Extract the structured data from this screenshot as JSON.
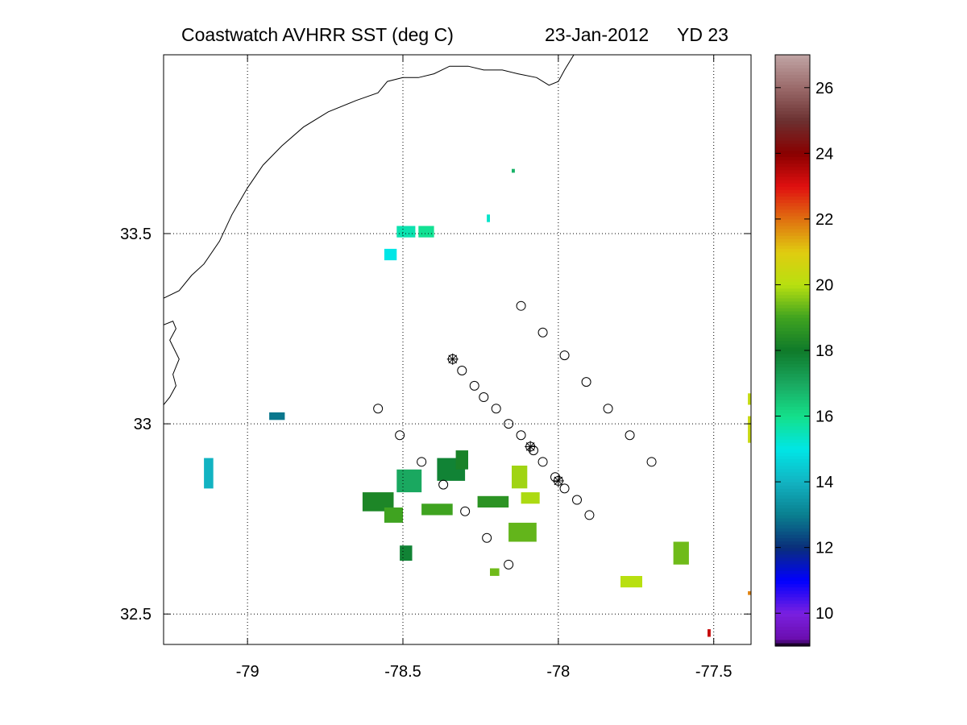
{
  "title": {
    "product": "Coastwatch  AVHRR   SST  (deg C)",
    "date": "23-Jan-2012",
    "yearday": "YD 23"
  },
  "map": {
    "lon_range": [
      -79.27,
      -77.38
    ],
    "lat_range": [
      32.42,
      33.97
    ],
    "lon_ticks": [
      {
        "value": -79,
        "label": "-79"
      },
      {
        "value": -78.5,
        "label": "-78.5"
      },
      {
        "value": -78,
        "label": "-78"
      },
      {
        "value": -77.5,
        "label": "-77.5"
      }
    ],
    "lat_ticks": [
      {
        "value": 32.5,
        "label": "32.5"
      },
      {
        "value": 33,
        "label": "33"
      },
      {
        "value": 33.5,
        "label": "33.5"
      }
    ],
    "grid": "dotted",
    "coastline_color": "#000000"
  },
  "colorbar": {
    "range": [
      9,
      27
    ],
    "ticks": [
      {
        "value": 10,
        "label": "10"
      },
      {
        "value": 12,
        "label": "12"
      },
      {
        "value": 14,
        "label": "14"
      },
      {
        "value": 16,
        "label": "16"
      },
      {
        "value": 18,
        "label": "18"
      },
      {
        "value": 20,
        "label": "20"
      },
      {
        "value": 22,
        "label": "22"
      },
      {
        "value": 24,
        "label": "24"
      },
      {
        "value": 26,
        "label": "26"
      }
    ],
    "stops": [
      {
        "value": 9.0,
        "color": "#000000"
      },
      {
        "value": 9.2,
        "color": "#6a0dad"
      },
      {
        "value": 10.0,
        "color": "#7a20e0"
      },
      {
        "value": 11.0,
        "color": "#0000ff"
      },
      {
        "value": 12.0,
        "color": "#0a2e7a"
      },
      {
        "value": 13.0,
        "color": "#0a7f8f"
      },
      {
        "value": 14.0,
        "color": "#12b3c2"
      },
      {
        "value": 15.0,
        "color": "#00e6e6"
      },
      {
        "value": 16.0,
        "color": "#14e08a"
      },
      {
        "value": 17.0,
        "color": "#1aa860"
      },
      {
        "value": 18.0,
        "color": "#0f7a2a"
      },
      {
        "value": 19.0,
        "color": "#3fa320"
      },
      {
        "value": 20.0,
        "color": "#b8e010"
      },
      {
        "value": 21.0,
        "color": "#e0cc10"
      },
      {
        "value": 22.0,
        "color": "#e07010"
      },
      {
        "value": 23.0,
        "color": "#e01010"
      },
      {
        "value": 24.0,
        "color": "#8a0000"
      },
      {
        "value": 25.0,
        "color": "#6b3030"
      },
      {
        "value": 26.0,
        "color": "#9a6a6a"
      },
      {
        "value": 27.0,
        "color": "#c0a4a4"
      }
    ]
  },
  "coastline": [
    [
      -79.27,
      33.33
    ],
    [
      -79.22,
      33.35
    ],
    [
      -79.18,
      33.39
    ],
    [
      -79.14,
      33.42
    ],
    [
      -79.09,
      33.48
    ],
    [
      -79.05,
      33.55
    ],
    [
      -79.0,
      33.62
    ],
    [
      -78.95,
      33.68
    ],
    [
      -78.89,
      33.73
    ],
    [
      -78.82,
      33.78
    ],
    [
      -78.74,
      33.82
    ],
    [
      -78.65,
      33.85
    ],
    [
      -78.58,
      33.87
    ],
    [
      -78.55,
      33.9
    ],
    [
      -78.5,
      33.91
    ],
    [
      -78.45,
      33.91
    ],
    [
      -78.4,
      33.92
    ],
    [
      -78.35,
      33.94
    ],
    [
      -78.29,
      33.94
    ],
    [
      -78.24,
      33.93
    ],
    [
      -78.18,
      33.93
    ],
    [
      -78.13,
      33.92
    ],
    [
      -78.07,
      33.91
    ],
    [
      -78.03,
      33.89
    ],
    [
      -78.0,
      33.9
    ],
    [
      -77.98,
      33.93
    ],
    [
      -77.95,
      33.97
    ]
  ],
  "estuary": [
    [
      -79.27,
      33.26
    ],
    [
      -79.24,
      33.27
    ],
    [
      -79.23,
      33.25
    ],
    [
      -79.25,
      33.22
    ],
    [
      -79.22,
      33.17
    ],
    [
      -79.24,
      33.13
    ],
    [
      -79.23,
      33.1
    ],
    [
      -79.25,
      33.07
    ],
    [
      -79.27,
      33.05
    ]
  ],
  "sst_patches": [
    {
      "lon": -78.52,
      "lat": 33.49,
      "w": 0.06,
      "h": 0.03,
      "temp": 15.6
    },
    {
      "lon": -78.45,
      "lat": 33.49,
      "w": 0.05,
      "h": 0.03,
      "temp": 15.9
    },
    {
      "lon": -78.56,
      "lat": 33.43,
      "w": 0.04,
      "h": 0.03,
      "temp": 15.0
    },
    {
      "lon": -78.15,
      "lat": 33.66,
      "w": 0.01,
      "h": 0.01,
      "temp": 16.8
    },
    {
      "lon": -78.23,
      "lat": 33.53,
      "w": 0.01,
      "h": 0.02,
      "temp": 15.3
    },
    {
      "lon": -78.93,
      "lat": 33.01,
      "w": 0.05,
      "h": 0.02,
      "temp": 12.9
    },
    {
      "lon": -79.14,
      "lat": 32.83,
      "w": 0.03,
      "h": 0.08,
      "temp": 14.0
    },
    {
      "lon": -78.52,
      "lat": 32.82,
      "w": 0.08,
      "h": 0.06,
      "temp": 17.0
    },
    {
      "lon": -78.63,
      "lat": 32.77,
      "w": 0.1,
      "h": 0.05,
      "temp": 18.3
    },
    {
      "lon": -78.56,
      "lat": 32.74,
      "w": 0.06,
      "h": 0.04,
      "temp": 19.0
    },
    {
      "lon": -78.51,
      "lat": 32.64,
      "w": 0.04,
      "h": 0.04,
      "temp": 17.8
    },
    {
      "lon": -78.39,
      "lat": 32.85,
      "w": 0.09,
      "h": 0.06,
      "temp": 17.8
    },
    {
      "lon": -78.33,
      "lat": 32.88,
      "w": 0.04,
      "h": 0.05,
      "temp": 18.2
    },
    {
      "lon": -78.26,
      "lat": 32.78,
      "w": 0.1,
      "h": 0.03,
      "temp": 18.6
    },
    {
      "lon": -78.44,
      "lat": 32.76,
      "w": 0.1,
      "h": 0.03,
      "temp": 19.0
    },
    {
      "lon": -78.15,
      "lat": 32.83,
      "w": 0.05,
      "h": 0.06,
      "temp": 19.8
    },
    {
      "lon": -78.12,
      "lat": 32.79,
      "w": 0.06,
      "h": 0.03,
      "temp": 19.9
    },
    {
      "lon": -78.16,
      "lat": 32.69,
      "w": 0.09,
      "h": 0.05,
      "temp": 19.3
    },
    {
      "lon": -78.22,
      "lat": 32.6,
      "w": 0.03,
      "h": 0.02,
      "temp": 19.4
    },
    {
      "lon": -77.63,
      "lat": 32.63,
      "w": 0.05,
      "h": 0.06,
      "temp": 19.4
    },
    {
      "lon": -77.8,
      "lat": 32.57,
      "w": 0.07,
      "h": 0.03,
      "temp": 20.0
    },
    {
      "lon": -77.39,
      "lat": 33.05,
      "w": 0.02,
      "h": 0.03,
      "temp": 20.3
    },
    {
      "lon": -77.39,
      "lat": 32.95,
      "w": 0.02,
      "h": 0.07,
      "temp": 20.4
    },
    {
      "lon": -77.39,
      "lat": 32.55,
      "w": 0.03,
      "h": 0.01,
      "temp": 21.8
    },
    {
      "lon": -77.52,
      "lat": 32.44,
      "w": 0.01,
      "h": 0.02,
      "temp": 23.3
    }
  ],
  "stations": [
    {
      "lon": -78.12,
      "lat": 33.31,
      "marker": "circle"
    },
    {
      "lon": -78.05,
      "lat": 33.24,
      "marker": "circle"
    },
    {
      "lon": -77.98,
      "lat": 33.18,
      "marker": "circle"
    },
    {
      "lon": -77.91,
      "lat": 33.11,
      "marker": "circle"
    },
    {
      "lon": -77.84,
      "lat": 33.04,
      "marker": "circle"
    },
    {
      "lon": -77.77,
      "lat": 32.97,
      "marker": "circle"
    },
    {
      "lon": -77.7,
      "lat": 32.9,
      "marker": "circle"
    },
    {
      "lon": -78.34,
      "lat": 33.17,
      "marker": "circle-plus"
    },
    {
      "lon": -78.31,
      "lat": 33.14,
      "marker": "circle"
    },
    {
      "lon": -78.27,
      "lat": 33.1,
      "marker": "circle"
    },
    {
      "lon": -78.24,
      "lat": 33.07,
      "marker": "circle"
    },
    {
      "lon": -78.2,
      "lat": 33.04,
      "marker": "circle"
    },
    {
      "lon": -78.16,
      "lat": 33.0,
      "marker": "circle"
    },
    {
      "lon": -78.12,
      "lat": 32.97,
      "marker": "circle"
    },
    {
      "lon": -78.09,
      "lat": 32.94,
      "marker": "circle-plus"
    },
    {
      "lon": -78.08,
      "lat": 32.93,
      "marker": "circle"
    },
    {
      "lon": -78.05,
      "lat": 32.9,
      "marker": "circle"
    },
    {
      "lon": -78.01,
      "lat": 32.86,
      "marker": "circle"
    },
    {
      "lon": -78.0,
      "lat": 32.85,
      "marker": "circle-plus"
    },
    {
      "lon": -77.98,
      "lat": 32.83,
      "marker": "circle"
    },
    {
      "lon": -77.94,
      "lat": 32.8,
      "marker": "circle"
    },
    {
      "lon": -77.9,
      "lat": 32.76,
      "marker": "circle"
    },
    {
      "lon": -78.58,
      "lat": 33.04,
      "marker": "circle"
    },
    {
      "lon": -78.51,
      "lat": 32.97,
      "marker": "circle"
    },
    {
      "lon": -78.44,
      "lat": 32.9,
      "marker": "circle"
    },
    {
      "lon": -78.37,
      "lat": 32.84,
      "marker": "circle"
    },
    {
      "lon": -78.3,
      "lat": 32.77,
      "marker": "circle"
    },
    {
      "lon": -78.23,
      "lat": 32.7,
      "marker": "circle"
    },
    {
      "lon": -78.16,
      "lat": 32.63,
      "marker": "circle"
    }
  ]
}
